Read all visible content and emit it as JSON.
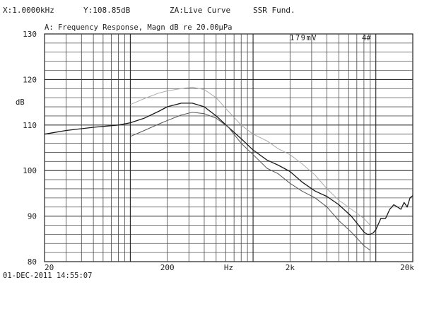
{
  "readout": {
    "x": "X:1.0000kHz",
    "y": "Y:108.85dB",
    "z": "ZA:Live Curve",
    "mode": "SSR Fund."
  },
  "timestamp": "01-DEC-2011 14:55:07",
  "chart_data": {
    "type": "line",
    "title": "A: Frequency Response, Magn dB re 20.00µPa",
    "annotations": [
      "179mV",
      "4#"
    ],
    "x_scale": "log",
    "xlim": [
      20,
      20000
    ],
    "ylim": [
      80,
      130
    ],
    "ylabel": "dB",
    "xlabel": "Hz",
    "x_ticks": [
      {
        "value": 20,
        "label": "20"
      },
      {
        "value": 200,
        "label": "200"
      },
      {
        "value": 632,
        "label": "Hz"
      },
      {
        "value": 2000,
        "label": "2k"
      },
      {
        "value": 20000,
        "label": "20k"
      }
    ],
    "y_ticks": [
      {
        "value": 130,
        "label": "130"
      },
      {
        "value": 120,
        "label": "120"
      },
      {
        "value": 110,
        "label": "110"
      },
      {
        "value": 100,
        "label": "100"
      },
      {
        "value": 90,
        "label": "90"
      },
      {
        "value": 80,
        "label": "80"
      }
    ],
    "grid": true,
    "series": [
      {
        "color": "#1a1a1a",
        "dash": "",
        "x": [
          20,
          30,
          50,
          80,
          100,
          130,
          170,
          200,
          260,
          320,
          400,
          500,
          630,
          800,
          1000,
          1300,
          1600,
          2000,
          2500,
          3200,
          4000,
          5000,
          6300,
          7000,
          8000,
          8500,
          9000,
          9500,
          10000,
          11000,
          12000,
          13000,
          14000,
          15000,
          16000,
          17000,
          18000,
          19000,
          20000
        ],
        "y": [
          108.0,
          108.8,
          109.5,
          110.0,
          110.5,
          111.5,
          113.0,
          114.0,
          114.8,
          114.8,
          114.0,
          112.0,
          109.5,
          107.0,
          104.5,
          102.3,
          101.2,
          99.8,
          97.5,
          95.5,
          94.3,
          92.5,
          90.0,
          88.5,
          86.5,
          86.0,
          86.0,
          86.3,
          87.0,
          89.5,
          89.5,
          91.5,
          92.5,
          92.0,
          91.5,
          93.0,
          92.0,
          94.0,
          94.5
        ]
      },
      {
        "color": "#aaaaaa",
        "dash": "",
        "x": [
          100,
          130,
          170,
          200,
          260,
          320,
          400,
          500,
          630,
          800,
          1000,
          1300,
          1600,
          2000,
          2500,
          3200,
          4000,
          5000,
          6300,
          8000,
          9000
        ],
        "y": [
          114.5,
          115.8,
          117.0,
          117.5,
          118.0,
          118.3,
          117.8,
          116.0,
          113.0,
          110.0,
          108.0,
          106.5,
          104.8,
          103.5,
          101.5,
          99.0,
          96.0,
          93.5,
          91.5,
          89.5,
          88.0
        ]
      },
      {
        "color": "#555555",
        "dash": "",
        "x": [
          100,
          130,
          170,
          200,
          260,
          320,
          400,
          500,
          630,
          800,
          1000,
          1300,
          1600,
          2000,
          2500,
          3200,
          4000,
          5000,
          6300,
          8000,
          9000
        ],
        "y": [
          107.5,
          108.8,
          110.2,
          111.0,
          112.2,
          112.8,
          112.5,
          111.5,
          109.5,
          106.0,
          103.5,
          100.5,
          99.3,
          97.2,
          95.5,
          94.0,
          92.0,
          89.0,
          86.5,
          83.5,
          82.5
        ]
      }
    ]
  }
}
